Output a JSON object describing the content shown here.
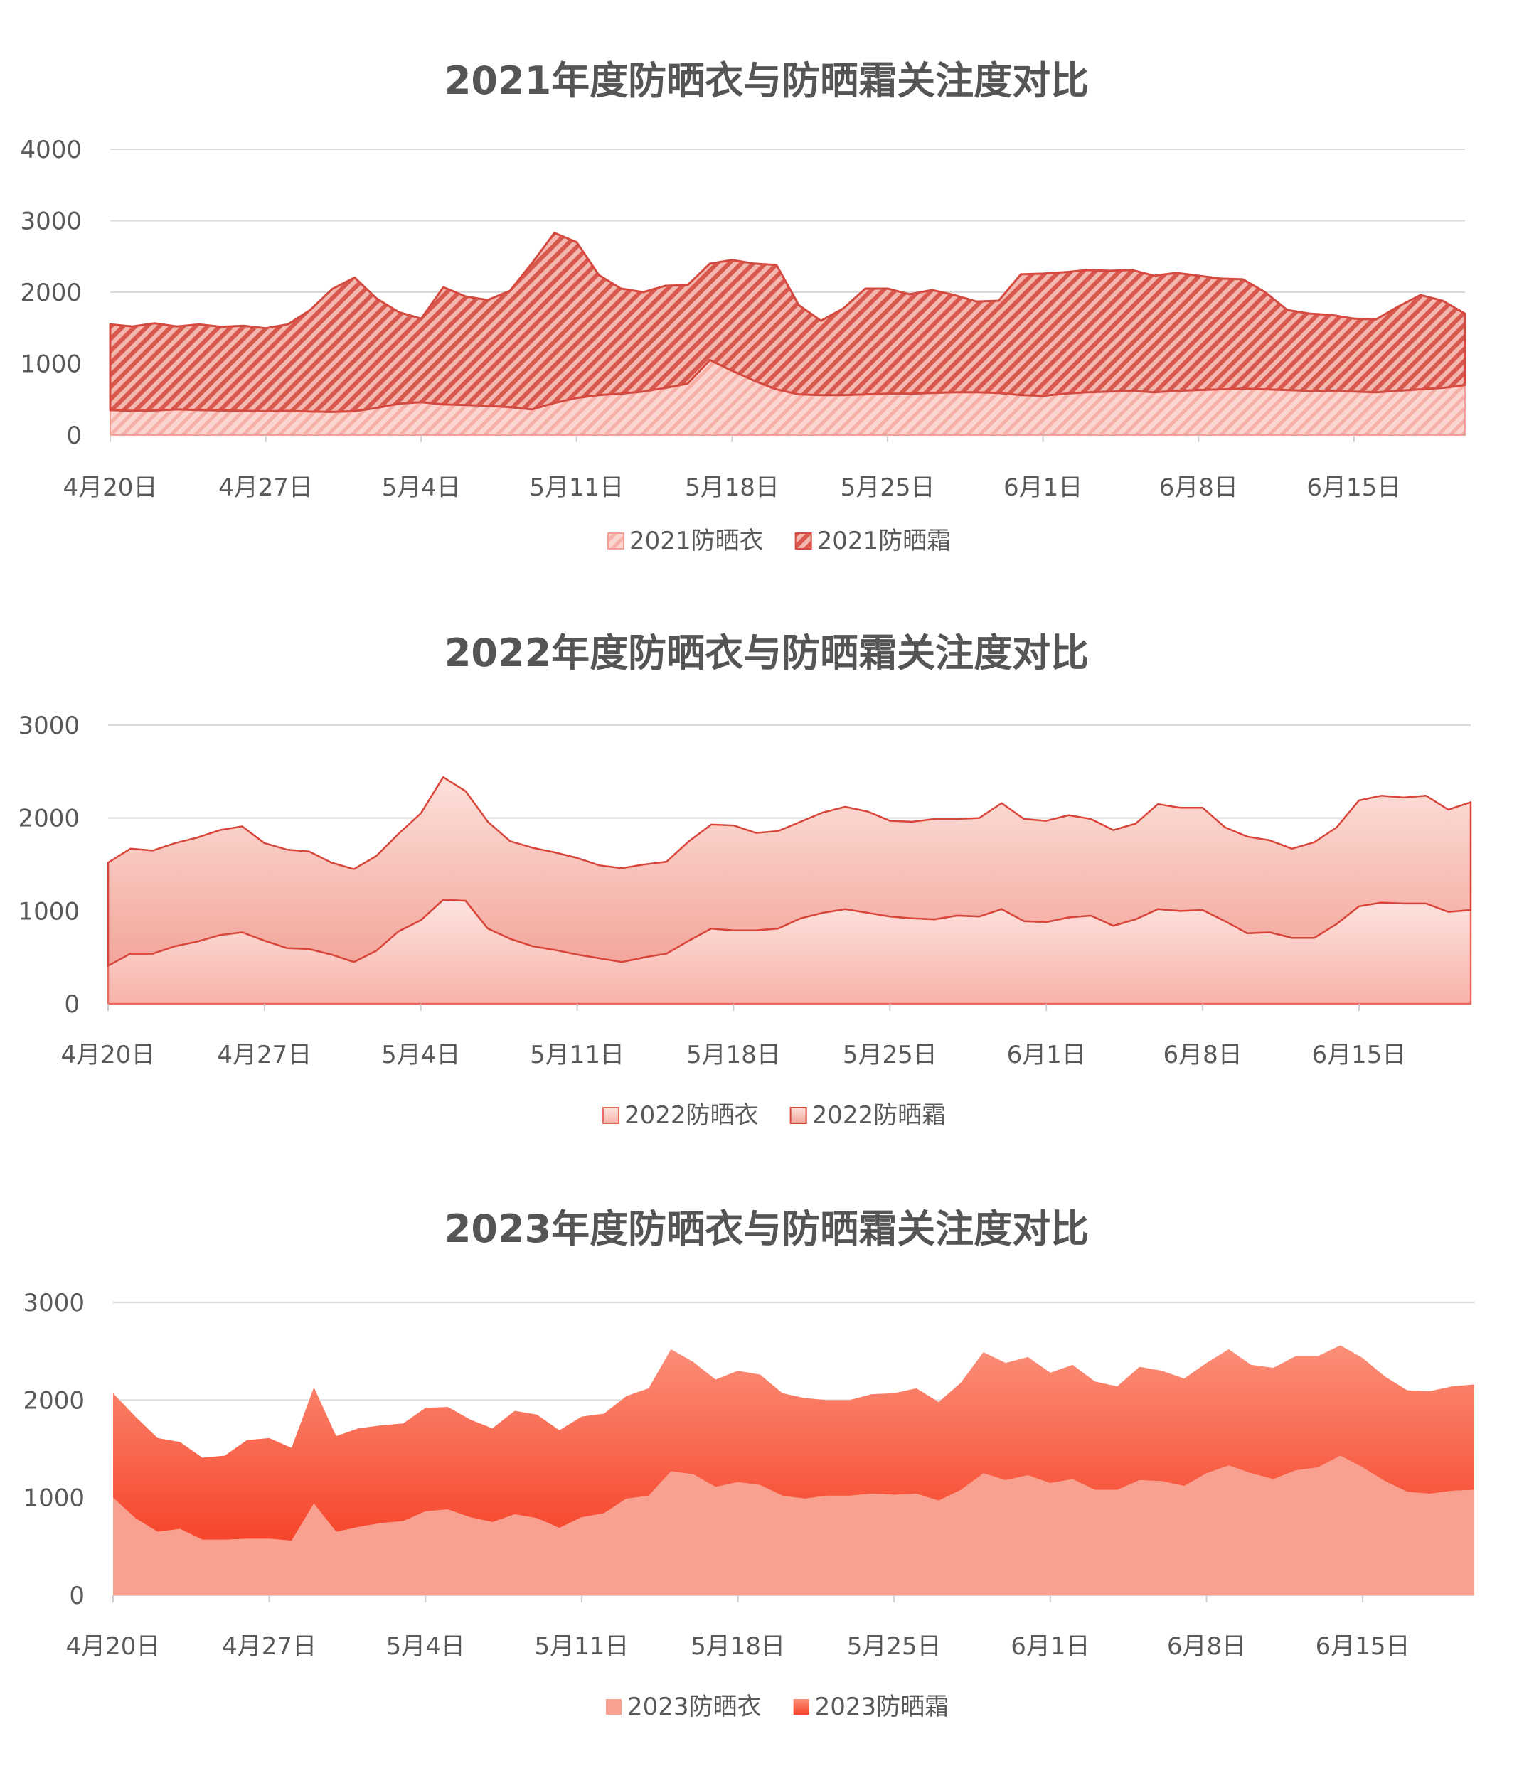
{
  "chart_data": [
    {
      "type": "area",
      "stacked": true,
      "title": "2021年度防晒衣与防晒霜关注度对比",
      "xlabel": "",
      "ylabel": "",
      "x_ticks": [
        "4月20日",
        "4月27日",
        "5月4日",
        "5月11日",
        "5月18日",
        "5月25日",
        "6月1日",
        "6月8日",
        "6月15日"
      ],
      "y_ticks": [
        "0",
        "1000",
        "2000",
        "3000",
        "4000"
      ],
      "ylim": [
        0,
        4000
      ],
      "n_days": 62,
      "grid": true,
      "legend_position": "bottom",
      "series": [
        {
          "name": "2021防晒衣",
          "color": "#f4a6a0",
          "pattern": "diagonal-light",
          "values": [
            350,
            340,
            345,
            360,
            350,
            345,
            340,
            335,
            340,
            330,
            325,
            335,
            380,
            440,
            460,
            430,
            420,
            410,
            390,
            360,
            450,
            520,
            560,
            580,
            610,
            660,
            720,
            1050,
            900,
            760,
            640,
            570,
            560,
            560,
            570,
            580,
            580,
            590,
            600,
            600,
            590,
            560,
            550,
            580,
            600,
            610,
            620,
            600,
            620,
            630,
            640,
            650,
            640,
            630,
            620,
            620,
            610,
            600,
            620,
            640,
            660,
            700
          ]
        },
        {
          "name": "2021防晒霜",
          "color": "#d9534a",
          "pattern": "diagonal-dark",
          "values": [
            1200,
            1180,
            1220,
            1160,
            1200,
            1170,
            1190,
            1160,
            1210,
            1420,
            1720,
            1870,
            1530,
            1280,
            1170,
            1640,
            1520,
            1480,
            1630,
            2050,
            2380,
            2180,
            1680,
            1470,
            1390,
            1430,
            1380,
            1350,
            1550,
            1640,
            1740,
            1250,
            1040,
            1210,
            1480,
            1470,
            1390,
            1440,
            1360,
            1270,
            1290,
            1690,
            1710,
            1700,
            1710,
            1690,
            1690,
            1630,
            1650,
            1600,
            1550,
            1530,
            1360,
            1120,
            1080,
            1060,
            1020,
            1020,
            1180,
            1320,
            1220,
            1000
          ]
        }
      ]
    },
    {
      "type": "area",
      "stacked": true,
      "title": "2022年度防晒衣与防晒霜关注度对比",
      "xlabel": "",
      "ylabel": "",
      "x_ticks": [
        "4月20日",
        "4月27日",
        "5月4日",
        "5月11日",
        "5月18日",
        "5月25日",
        "6月1日",
        "6月8日",
        "6月15日"
      ],
      "y_ticks": [
        "0",
        "1000",
        "2000",
        "3000"
      ],
      "ylim": [
        0,
        3000
      ],
      "n_days": 62,
      "grid": true,
      "legend_position": "bottom",
      "series": [
        {
          "name": "2022防晒衣",
          "color": "#f8c0b8",
          "pattern": "gradient-light",
          "values": [
            410,
            540,
            540,
            620,
            670,
            740,
            770,
            680,
            600,
            590,
            530,
            450,
            570,
            780,
            900,
            1120,
            1110,
            810,
            700,
            620,
            580,
            530,
            490,
            450,
            500,
            540,
            680,
            810,
            790,
            790,
            810,
            920,
            980,
            1020,
            980,
            940,
            920,
            910,
            950,
            940,
            1020,
            890,
            880,
            930,
            950,
            840,
            910,
            1020,
            1000,
            1010,
            890,
            760,
            770,
            710,
            710,
            860,
            1050,
            1090,
            1080,
            1080,
            990,
            1010
          ]
        },
        {
          "name": "2022防晒霜",
          "color": "#e8847a",
          "pattern": "gradient-medium",
          "values": [
            1110,
            1130,
            1110,
            1110,
            1120,
            1130,
            1140,
            1050,
            1060,
            1050,
            990,
            1000,
            1020,
            1050,
            1150,
            1320,
            1180,
            1150,
            1050,
            1060,
            1050,
            1040,
            1000,
            1010,
            1000,
            990,
            1070,
            1120,
            1130,
            1050,
            1050,
            1040,
            1080,
            1100,
            1090,
            1030,
            1040,
            1080,
            1040,
            1060,
            1140,
            1100,
            1090,
            1100,
            1040,
            1030,
            1030,
            1130,
            1110,
            1100,
            1010,
            1040,
            990,
            960,
            1030,
            1040,
            1140,
            1150,
            1140,
            1160,
            1100,
            1160
          ]
        }
      ]
    },
    {
      "type": "area",
      "stacked": true,
      "title": "2023年度防晒衣与防晒霜关注度对比",
      "xlabel": "",
      "ylabel": "",
      "x_ticks": [
        "4月20日",
        "4月27日",
        "5月4日",
        "5月11日",
        "5月18日",
        "5月25日",
        "6月1日",
        "6月8日",
        "6月15日"
      ],
      "y_ticks": [
        "0",
        "1000",
        "2000",
        "3000"
      ],
      "ylim": [
        0,
        3000
      ],
      "n_days": 62,
      "grid": true,
      "legend_position": "bottom",
      "series": [
        {
          "name": "2023防晒衣",
          "color": "#f9a190",
          "pattern": "solid",
          "values": [
            1000,
            790,
            650,
            680,
            570,
            570,
            580,
            580,
            560,
            940,
            650,
            700,
            740,
            760,
            860,
            880,
            800,
            750,
            830,
            790,
            690,
            800,
            840,
            990,
            1020,
            1270,
            1240,
            1110,
            1160,
            1130,
            1020,
            990,
            1020,
            1020,
            1040,
            1030,
            1040,
            970,
            1080,
            1250,
            1180,
            1230,
            1150,
            1190,
            1080,
            1080,
            1180,
            1170,
            1120,
            1250,
            1330,
            1250,
            1190,
            1280,
            1310,
            1430,
            1310,
            1170,
            1060,
            1040,
            1070,
            1080
          ]
        },
        {
          "name": "2023防晒霜",
          "color": "#f5472c",
          "pattern": "gradient-strong",
          "values": [
            1070,
            1040,
            960,
            890,
            840,
            860,
            1010,
            1030,
            950,
            1190,
            980,
            1010,
            1000,
            1000,
            1060,
            1050,
            1000,
            960,
            1060,
            1060,
            1000,
            1030,
            1020,
            1050,
            1100,
            1250,
            1150,
            1100,
            1140,
            1130,
            1050,
            1030,
            980,
            980,
            1020,
            1040,
            1080,
            1010,
            1100,
            1240,
            1200,
            1210,
            1130,
            1170,
            1110,
            1060,
            1160,
            1130,
            1100,
            1130,
            1190,
            1110,
            1140,
            1170,
            1140,
            1130,
            1120,
            1070,
            1040,
            1050,
            1070,
            1080
          ]
        }
      ]
    }
  ]
}
